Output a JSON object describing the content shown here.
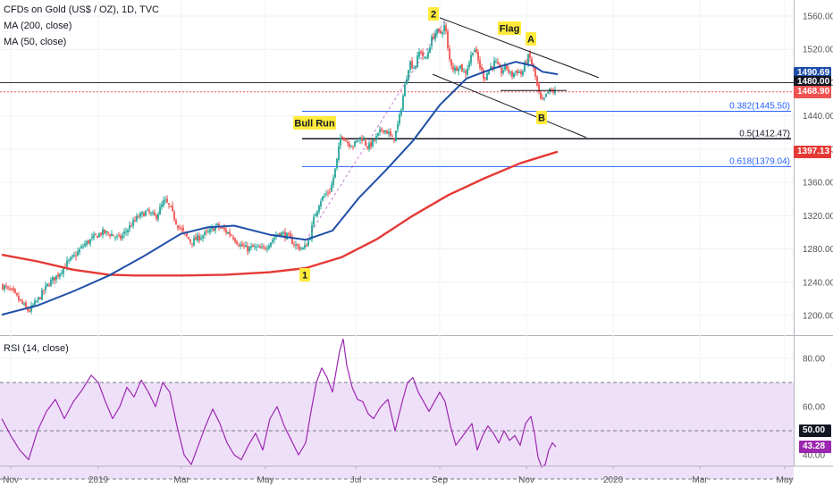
{
  "header": {
    "title": "CFDs on Gold (US$ / OZ), 1D, TVC",
    "ma200": "MA (200, close)",
    "ma50": "MA (50, close)"
  },
  "rsi_label": "RSI (14, close)",
  "colors": {
    "up": "#26a69a",
    "down": "#ef5350",
    "ma200": "#e53935",
    "ma50": "#1e4ea8",
    "rsi": "#9c27b0",
    "rsi_band": "#ead6f7",
    "fib_blue": "#2962ff",
    "annotation_bg": "#ffeb3b",
    "last_price": "#ef5350"
  },
  "chart_data": [
    {
      "type": "candlestick",
      "title": "CFDs on Gold (US$ / OZ), 1D, TVC",
      "x_tick_labels": [
        "Nov",
        "2019",
        "Mar",
        "May",
        "Jul",
        "Sep",
        "Nov",
        "2020",
        "Mar",
        "May"
      ],
      "y_ticks": [
        1200,
        1240,
        1280,
        1320,
        1360,
        1400,
        1440,
        1480,
        1520,
        1560
      ],
      "ylim": [
        1185,
        1575
      ],
      "price_path": [
        [
          0,
          1236
        ],
        [
          12,
          1228
        ],
        [
          22,
          1215
        ],
        [
          30,
          1205
        ],
        [
          40,
          1218
        ],
        [
          52,
          1238
        ],
        [
          62,
          1248
        ],
        [
          72,
          1262
        ],
        [
          82,
          1272
        ],
        [
          92,
          1285
        ],
        [
          102,
          1293
        ],
        [
          112,
          1300
        ],
        [
          122,
          1298
        ],
        [
          132,
          1292
        ],
        [
          140,
          1303
        ],
        [
          152,
          1318
        ],
        [
          162,
          1325
        ],
        [
          172,
          1318
        ],
        [
          182,
          1338
        ],
        [
          188,
          1330
        ],
        [
          196,
          1310
        ],
        [
          204,
          1298
        ],
        [
          212,
          1288
        ],
        [
          222,
          1295
        ],
        [
          232,
          1300
        ],
        [
          240,
          1308
        ],
        [
          248,
          1303
        ],
        [
          258,
          1296
        ],
        [
          266,
          1285
        ],
        [
          274,
          1280
        ],
        [
          282,
          1282
        ],
        [
          292,
          1279
        ],
        [
          300,
          1288
        ],
        [
          310,
          1300
        ],
        [
          320,
          1295
        ],
        [
          330,
          1283
        ],
        [
          338,
          1280
        ],
        [
          344,
          1292
        ],
        [
          350,
          1320
        ],
        [
          356,
          1338
        ],
        [
          362,
          1345
        ],
        [
          368,
          1352
        ],
        [
          374,
          1380
        ],
        [
          380,
          1420
        ],
        [
          386,
          1408
        ],
        [
          394,
          1405
        ],
        [
          402,
          1415
        ],
        [
          410,
          1402
        ],
        [
          418,
          1412
        ],
        [
          426,
          1425
        ],
        [
          432,
          1420
        ],
        [
          438,
          1410
        ],
        [
          444,
          1432
        ],
        [
          450,
          1470
        ],
        [
          456,
          1505
        ],
        [
          462,
          1498
        ],
        [
          468,
          1520
        ],
        [
          474,
          1505
        ],
        [
          480,
          1530
        ],
        [
          486,
          1542
        ],
        [
          490,
          1538
        ],
        [
          496,
          1550
        ],
        [
          500,
          1510
        ],
        [
          506,
          1495
        ],
        [
          512,
          1502
        ],
        [
          518,
          1490
        ],
        [
          524,
          1508
        ],
        [
          528,
          1524
        ],
        [
          534,
          1502
        ],
        [
          540,
          1485
        ],
        [
          546,
          1498
        ],
        [
          552,
          1505
        ],
        [
          558,
          1492
        ],
        [
          564,
          1500
        ],
        [
          570,
          1488
        ],
        [
          576,
          1495
        ],
        [
          582,
          1490
        ],
        [
          586,
          1505
        ],
        [
          590,
          1512
        ],
        [
          596,
          1492
        ],
        [
          600,
          1470
        ],
        [
          604,
          1455
        ],
        [
          608,
          1462
        ],
        [
          612,
          1470
        ],
        [
          616,
          1470
        ],
        [
          620,
          1468
        ]
      ],
      "ma_200": [
        [
          0,
          1273
        ],
        [
          40,
          1265
        ],
        [
          80,
          1255
        ],
        [
          120,
          1249
        ],
        [
          150,
          1248
        ],
        [
          200,
          1248
        ],
        [
          250,
          1249
        ],
        [
          300,
          1252
        ],
        [
          340,
          1257
        ],
        [
          380,
          1270
        ],
        [
          420,
          1292
        ],
        [
          460,
          1320
        ],
        [
          500,
          1345
        ],
        [
          540,
          1365
        ],
        [
          580,
          1383
        ],
        [
          622,
          1397
        ]
      ],
      "ma_50": [
        [
          0,
          1201
        ],
        [
          40,
          1212
        ],
        [
          80,
          1229
        ],
        [
          120,
          1248
        ],
        [
          160,
          1272
        ],
        [
          200,
          1298
        ],
        [
          230,
          1306
        ],
        [
          260,
          1308
        ],
        [
          300,
          1297
        ],
        [
          340,
          1291
        ],
        [
          370,
          1302
        ],
        [
          400,
          1342
        ],
        [
          430,
          1375
        ],
        [
          460,
          1410
        ],
        [
          490,
          1453
        ],
        [
          520,
          1485
        ],
        [
          550,
          1497
        ],
        [
          575,
          1505
        ],
        [
          595,
          1500
        ],
        [
          605,
          1493
        ],
        [
          622,
          1490
        ]
      ],
      "fib_levels": [
        {
          "label": "0.382(1445.50)",
          "value": 1445.5,
          "color": "#2962ff"
        },
        {
          "label": "0.5(1412.47)",
          "value": 1412.47,
          "color": "#131722"
        },
        {
          "label": "0.618(1379.04)",
          "value": 1379.04,
          "color": "#2962ff"
        }
      ],
      "annotations": [
        {
          "text": "2"
        },
        {
          "text": "Flag"
        },
        {
          "text": "A"
        },
        {
          "text": "Bull Run"
        },
        {
          "text": "B"
        },
        {
          "text": "1"
        }
      ],
      "price_badges": [
        {
          "value": "1490.69",
          "color": "#1e4ea8"
        },
        {
          "value": "1480.00",
          "color": "#131722"
        },
        {
          "value": "1468.90",
          "color": "#ef5350"
        },
        {
          "value": "1397.13",
          "color": "#e53935"
        }
      ]
    },
    {
      "type": "line",
      "title": "RSI (14, close)",
      "y_ticks": [
        40,
        60,
        80
      ],
      "ylim": [
        28,
        92
      ],
      "band": [
        30,
        70
      ],
      "midline": 50,
      "rsi_path": [
        [
          0,
          55
        ],
        [
          10,
          48
        ],
        [
          20,
          42
        ],
        [
          30,
          38
        ],
        [
          40,
          50
        ],
        [
          50,
          58
        ],
        [
          60,
          63
        ],
        [
          70,
          55
        ],
        [
          80,
          62
        ],
        [
          90,
          67
        ],
        [
          100,
          73
        ],
        [
          108,
          70
        ],
        [
          116,
          62
        ],
        [
          124,
          55
        ],
        [
          132,
          60
        ],
        [
          140,
          68
        ],
        [
          148,
          64
        ],
        [
          156,
          71
        ],
        [
          164,
          66
        ],
        [
          172,
          60
        ],
        [
          180,
          70
        ],
        [
          188,
          66
        ],
        [
          196,
          52
        ],
        [
          204,
          40
        ],
        [
          212,
          36
        ],
        [
          220,
          44
        ],
        [
          228,
          52
        ],
        [
          236,
          59
        ],
        [
          244,
          53
        ],
        [
          252,
          45
        ],
        [
          260,
          40
        ],
        [
          268,
          38
        ],
        [
          276,
          44
        ],
        [
          284,
          49
        ],
        [
          292,
          42
        ],
        [
          300,
          55
        ],
        [
          308,
          60
        ],
        [
          316,
          52
        ],
        [
          324,
          46
        ],
        [
          332,
          40
        ],
        [
          340,
          45
        ],
        [
          346,
          58
        ],
        [
          352,
          70
        ],
        [
          358,
          76
        ],
        [
          364,
          72
        ],
        [
          370,
          66
        ],
        [
          378,
          83
        ],
        [
          382,
          88
        ],
        [
          386,
          77
        ],
        [
          392,
          68
        ],
        [
          398,
          63
        ],
        [
          404,
          62
        ],
        [
          410,
          57
        ],
        [
          416,
          55
        ],
        [
          424,
          60
        ],
        [
          432,
          63
        ],
        [
          440,
          50
        ],
        [
          448,
          62
        ],
        [
          454,
          70
        ],
        [
          460,
          72
        ],
        [
          466,
          66
        ],
        [
          472,
          62
        ],
        [
          478,
          58
        ],
        [
          484,
          62
        ],
        [
          490,
          66
        ],
        [
          496,
          62
        ],
        [
          502,
          52
        ],
        [
          508,
          44
        ],
        [
          514,
          47
        ],
        [
          520,
          50
        ],
        [
          526,
          53
        ],
        [
          532,
          42
        ],
        [
          538,
          48
        ],
        [
          544,
          52
        ],
        [
          550,
          49
        ],
        [
          556,
          45
        ],
        [
          562,
          50
        ],
        [
          568,
          46
        ],
        [
          574,
          48
        ],
        [
          580,
          44
        ],
        [
          586,
          53
        ],
        [
          592,
          56
        ],
        [
          596,
          49
        ],
        [
          600,
          39
        ],
        [
          604,
          35
        ],
        [
          608,
          36
        ],
        [
          612,
          42
        ],
        [
          616,
          45
        ],
        [
          620,
          43.3
        ]
      ],
      "badges": [
        {
          "value": "50.00",
          "color": "#131722"
        },
        {
          "value": "43.28",
          "color": "#9c27b0"
        }
      ]
    }
  ]
}
